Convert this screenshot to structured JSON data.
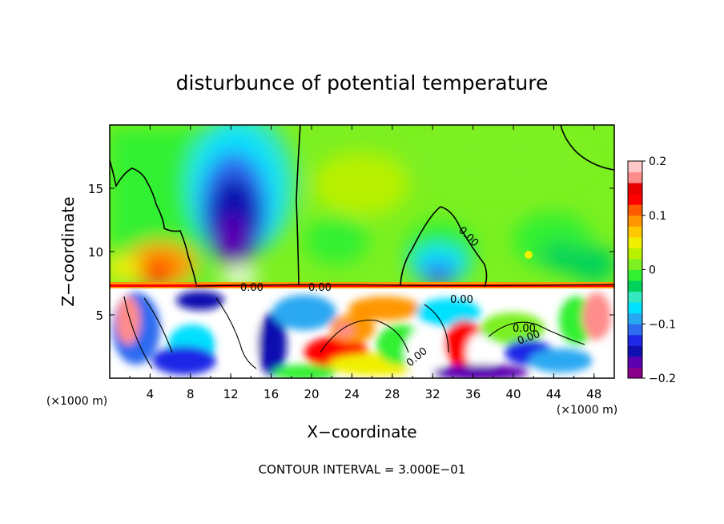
{
  "chart_data": {
    "type": "heatmap",
    "title": "disturbunce of potential temperature",
    "xlabel": "X−coordinate",
    "ylabel": "Z−coordinate",
    "x_unit_note_left": "(×1000 m)",
    "x_unit_note_right": "(×1000 m)",
    "footer": "CONTOUR INTERVAL = 3.000E−01",
    "xlim": [
      0,
      50
    ],
    "ylim": [
      0,
      20
    ],
    "x_ticks": [
      4,
      8,
      12,
      16,
      20,
      24,
      28,
      32,
      36,
      40,
      44,
      48
    ],
    "x_tick_labels": [
      "4",
      "8",
      "12",
      "16",
      "20",
      "24",
      "28",
      "32",
      "36",
      "40",
      "44",
      "48"
    ],
    "y_ticks": [
      5,
      10,
      15
    ],
    "y_tick_labels": [
      "5",
      "10",
      "15"
    ],
    "colorbar": {
      "range": [
        -0.2,
        0.2
      ],
      "tick_values": [
        0.2,
        0.1,
        0,
        -0.1,
        -0.2
      ],
      "tick_labels": [
        "0.2",
        "0.1",
        "0",
        "−0.1",
        "−0.2"
      ],
      "colors": [
        "#8a008a",
        "#5a00b0",
        "#1010b0",
        "#1e28e6",
        "#2e6cf0",
        "#29a8f2",
        "#00e0ff",
        "#33e8c0",
        "#00d25a",
        "#33f033",
        "#7cf020",
        "#b8f000",
        "#f0f000",
        "#ffc800",
        "#ff9600",
        "#ff5a00",
        "#ff0000",
        "#e60000",
        "#ff8c8c",
        "#ffc8c8"
      ]
    },
    "contour_labels": [
      "0.00",
      "0.00",
      "0.00",
      "0.00",
      "0.00",
      "0.00",
      "0.00"
    ],
    "field_samples": [
      {
        "x": 13,
        "z": 13,
        "value": -0.19
      },
      {
        "x": 13,
        "z": 17,
        "value": -0.08
      },
      {
        "x": 34,
        "z": 10,
        "value": -0.08
      },
      {
        "x": 4,
        "z": 9,
        "value": 0.12
      },
      {
        "x": 24,
        "z": 14,
        "value": 0.03
      },
      {
        "x": 45,
        "z": 12,
        "value": 0.03
      },
      {
        "x": 8,
        "z": 16,
        "value": 0.0
      }
    ]
  }
}
